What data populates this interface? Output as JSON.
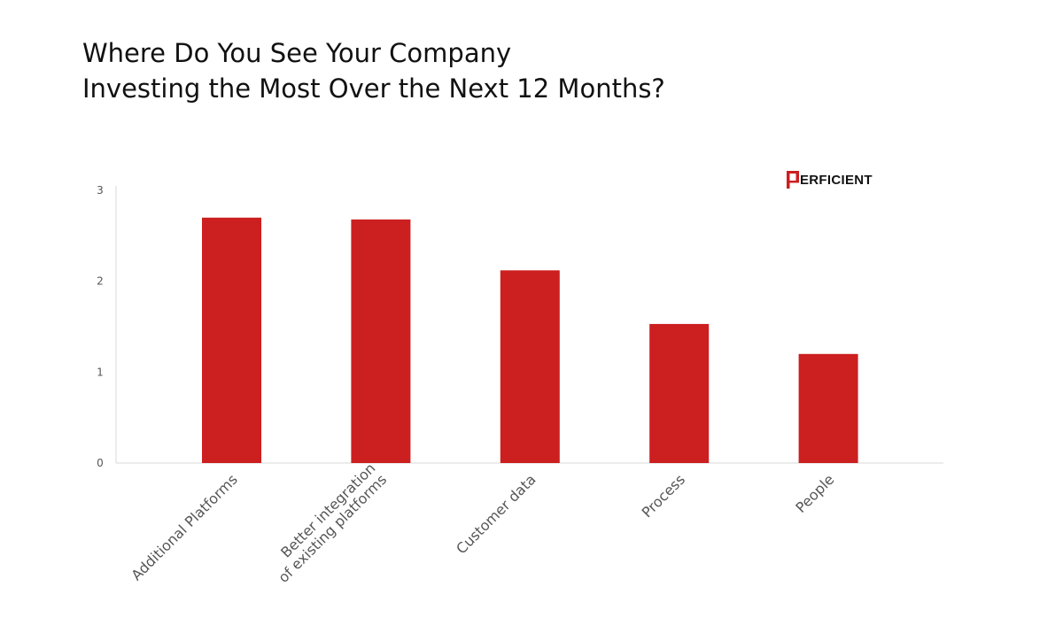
{
  "title": {
    "line1": "Where Do You See Your Company",
    "line2": "Investing the Most Over the Next 12 Months?"
  },
  "logo": {
    "text": "ERFICIENT",
    "icon": "perficient-p-logo-icon",
    "brand_color": "#cc1f20"
  },
  "chart_data": {
    "type": "bar",
    "categories": [
      [
        "Additional Platforms"
      ],
      [
        "Better integration",
        "of existing platforms"
      ],
      [
        "Customer data"
      ],
      [
        "Process"
      ],
      [
        "People"
      ]
    ],
    "values": [
      2.7,
      2.68,
      2.12,
      1.53,
      1.2
    ],
    "ylim": [
      0,
      3
    ],
    "yticks": [
      "0",
      "1",
      "2",
      "3"
    ],
    "bar_color": "#cc1f20",
    "grid": false,
    "legend": "none"
  }
}
